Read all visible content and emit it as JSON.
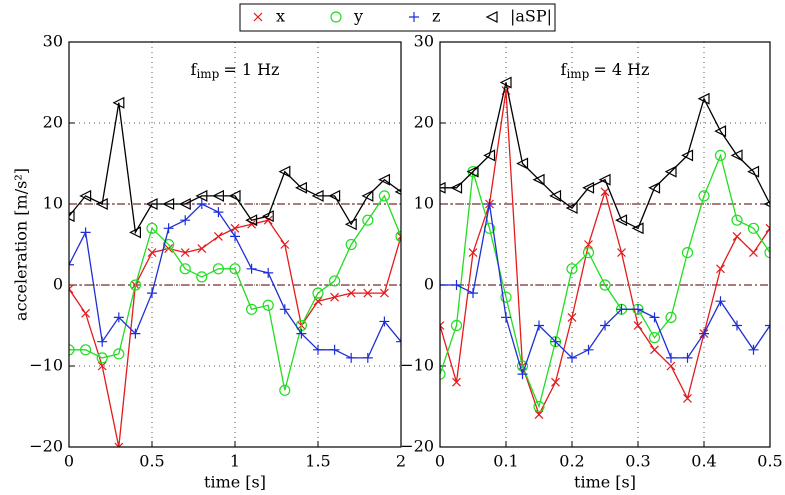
{
  "chart_data": [
    {
      "type": "line",
      "annotation": {
        "base": "f",
        "sub": "imp",
        "text": "= 1 Hz"
      },
      "xlabel": "time [s]",
      "ylabel": "acceleration [m/s²]",
      "xlim": [
        0,
        2
      ],
      "xticks": [
        0,
        0.5,
        1,
        1.5,
        2
      ],
      "ylim": [
        -20,
        30
      ],
      "yticks": [
        {
          "value": -20,
          "label": "−20"
        },
        {
          "value": -10,
          "label": "−10"
        },
        0,
        10,
        20,
        30
      ],
      "grid": true,
      "reference_lines": [
        0,
        10
      ],
      "reference_color": "#7a2a2a",
      "x": [
        0,
        0.1,
        0.2,
        0.3,
        0.4,
        0.5,
        0.6,
        0.7,
        0.8,
        0.9,
        1.0,
        1.1,
        1.2,
        1.3,
        1.4,
        1.5,
        1.6,
        1.7,
        1.8,
        1.9,
        2.0
      ],
      "series": [
        {
          "name": "x",
          "color": "#e41a1c",
          "marker": "x",
          "values": [
            -0.5,
            -3.5,
            -10,
            -20,
            0,
            4,
            4.5,
            4,
            4.5,
            6,
            7,
            7.5,
            8,
            5,
            -5,
            -2,
            -1.5,
            -1,
            -1,
            -1,
            6
          ]
        },
        {
          "name": "y",
          "color": "#22dd22",
          "marker": "o",
          "values": [
            -8,
            -8,
            -9,
            -8.5,
            0,
            7,
            5,
            2,
            1,
            2,
            2,
            -3,
            -2.5,
            -13,
            -5,
            -1,
            0.5,
            5,
            8,
            11,
            6
          ]
        },
        {
          "name": "z",
          "color": "#1f2fd6",
          "marker": "+",
          "values": [
            2.5,
            6.5,
            -7,
            -4,
            -6,
            -1,
            7,
            8,
            10,
            9,
            6,
            2,
            1.5,
            -3,
            -6,
            -8,
            -8,
            -9,
            -9,
            -4.5,
            -7
          ]
        },
        {
          "name": "|aSP|",
          "color": "#000000",
          "marker": "<",
          "values": [
            8.5,
            11,
            10,
            22.5,
            6.5,
            10,
            10,
            10,
            11,
            11,
            11,
            8,
            8.5,
            14,
            12,
            11,
            11,
            7.5,
            11,
            13,
            11.5
          ]
        }
      ]
    },
    {
      "type": "line",
      "annotation": {
        "base": "f",
        "sub": "imp",
        "text": "= 4 Hz"
      },
      "xlabel": "time [s]",
      "xlim": [
        0,
        0.5
      ],
      "xticks": [
        0,
        0.1,
        0.2,
        0.3,
        0.4,
        0.5
      ],
      "ylim": [
        -20,
        30
      ],
      "yticks": [
        {
          "value": -20,
          "label": "−20"
        },
        {
          "value": -10,
          "label": "−10"
        },
        0,
        10,
        20,
        30
      ],
      "grid": true,
      "reference_lines": [
        0,
        10
      ],
      "reference_color": "#7a2a2a",
      "x": [
        0,
        0.025,
        0.05,
        0.075,
        0.1,
        0.125,
        0.15,
        0.175,
        0.2,
        0.225,
        0.25,
        0.275,
        0.3,
        0.325,
        0.35,
        0.375,
        0.4,
        0.425,
        0.45,
        0.475,
        0.5
      ],
      "series": [
        {
          "color": "#e41a1c",
          "marker": "x",
          "values": [
            -5,
            -12,
            4,
            10,
            24,
            -10,
            -16,
            -12,
            -4,
            5,
            11.5,
            4,
            -5,
            -8,
            -10,
            -14,
            -6,
            2,
            6,
            4,
            7
          ]
        },
        {
          "color": "#22dd22",
          "marker": "o",
          "values": [
            -11,
            -5,
            14,
            7,
            -1.5,
            -10,
            -15,
            -7,
            2,
            4,
            0,
            -3,
            -3,
            -6.5,
            -4,
            4,
            11,
            16,
            8,
            7,
            4
          ]
        },
        {
          "color": "#1f2fd6",
          "marker": "+",
          "values": [
            0,
            0,
            -1,
            10,
            -4,
            -11,
            -5,
            -7,
            -9,
            -8,
            -5,
            -3,
            -3,
            -4,
            -9,
            -9,
            -6,
            -2,
            -5,
            -8,
            -5
          ]
        },
        {
          "color": "#000000",
          "marker": "<",
          "values": [
            12,
            12,
            14,
            16,
            25,
            15,
            13,
            11,
            9.5,
            12,
            13,
            8,
            7,
            12,
            14,
            16,
            23,
            19,
            16,
            14,
            10
          ]
        }
      ]
    }
  ]
}
